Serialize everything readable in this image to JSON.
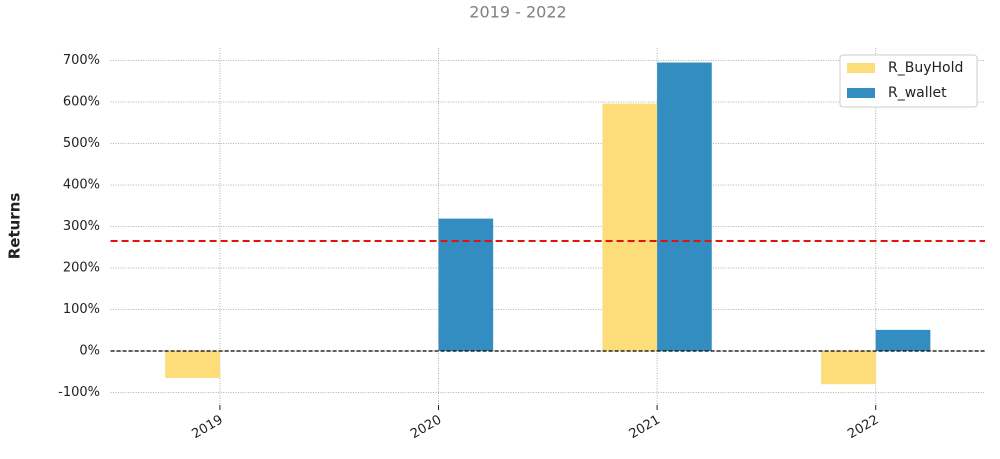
{
  "chart_data": {
    "type": "bar",
    "subtitle": "2019 - 2022",
    "ylabel": "Returns",
    "categories": [
      "2019",
      "2020",
      "2021",
      "2022"
    ],
    "series": [
      {
        "name": "R_BuyHold",
        "color": "#fddc7a",
        "values": [
          -65,
          0,
          596,
          -80
        ]
      },
      {
        "name": "R_wallet",
        "color": "#348dc1",
        "values": [
          0,
          319,
          695,
          51
        ]
      }
    ],
    "ylim": [
      -130,
      730
    ],
    "yticks": [
      {
        "value": -100,
        "label": "-100%"
      },
      {
        "value": 0,
        "label": "0%"
      },
      {
        "value": 100,
        "label": "100%"
      },
      {
        "value": 200,
        "label": "200%"
      },
      {
        "value": 300,
        "label": "300%"
      },
      {
        "value": 400,
        "label": "400%"
      },
      {
        "value": 500,
        "label": "500%"
      },
      {
        "value": 600,
        "label": "600%"
      },
      {
        "value": 700,
        "label": "700%"
      }
    ],
    "reference_line": {
      "value": 265,
      "color": "#e3120b"
    },
    "grid": true,
    "legend": "upper right"
  }
}
